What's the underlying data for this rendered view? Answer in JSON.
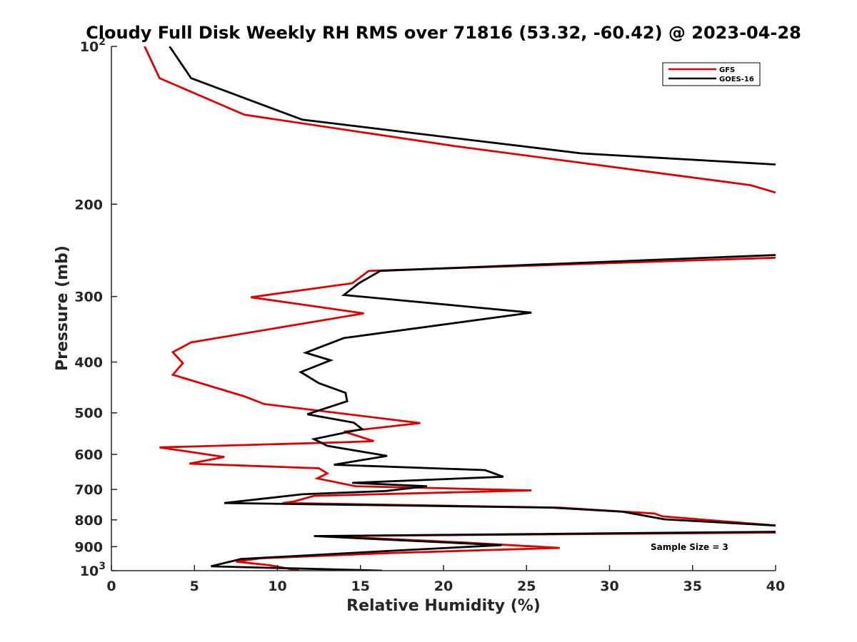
{
  "chart_data": {
    "type": "line",
    "title": "Cloudy Full Disk Weekly RH RMS over 71816 (53.32, -60.42) @ 2023-04-28",
    "xlabel": "Relative Humidity (%)",
    "ylabel": "Pressure (mb)",
    "xlim": [
      0,
      40
    ],
    "ylim": [
      100,
      1000
    ],
    "y_scale": "log",
    "y_reversed": true,
    "x_ticks": [
      0,
      5,
      10,
      15,
      20,
      25,
      30,
      35,
      40
    ],
    "x_tick_labels": [
      "0",
      "5",
      "10",
      "15",
      "20",
      "25",
      "30",
      "35",
      "40"
    ],
    "y_ticks": [
      100,
      200,
      300,
      400,
      500,
      600,
      700,
      800,
      900,
      1000
    ],
    "y_tick_labels": [
      {
        "base": "10",
        "exp": "2"
      },
      {
        "base": "200",
        "exp": ""
      },
      {
        "base": "300",
        "exp": ""
      },
      {
        "base": "400",
        "exp": ""
      },
      {
        "base": "500",
        "exp": ""
      },
      {
        "base": "600",
        "exp": ""
      },
      {
        "base": "700",
        "exp": ""
      },
      {
        "base": "800",
        "exp": ""
      },
      {
        "base": "900",
        "exp": ""
      },
      {
        "base": "10",
        "exp": "3"
      }
    ],
    "legend_position": "top-right",
    "annotation": "Sample Size = 3",
    "series": [
      {
        "name": "GFS",
        "color": "#dd0000",
        "points": [
          [
            2.0,
            100
          ],
          [
            2.9,
            115
          ],
          [
            8.0,
            135
          ],
          [
            20.7,
            155
          ],
          [
            38.5,
            184
          ],
          [
            40.0,
            190
          ],
          [
            null,
            null
          ],
          [
            40.0,
            253
          ],
          [
            15.5,
            268
          ],
          [
            14.5,
            283
          ],
          [
            8.4,
            301
          ],
          [
            15.2,
            323
          ],
          [
            4.8,
            367
          ],
          [
            3.7,
            383
          ],
          [
            4.3,
            402
          ],
          [
            3.7,
            423
          ],
          [
            8.0,
            465
          ],
          [
            9.2,
            481
          ],
          [
            18.6,
            523
          ],
          [
            14.0,
            543
          ],
          [
            15.8,
            566
          ],
          [
            14.0,
            569
          ],
          [
            2.9,
            582
          ],
          [
            6.8,
            607
          ],
          [
            4.7,
            625
          ],
          [
            12.5,
            638
          ],
          [
            13.0,
            652
          ],
          [
            12.4,
            667
          ],
          [
            14.7,
            690
          ],
          [
            25.3,
            703
          ],
          [
            12.2,
            720
          ],
          [
            11.0,
            738
          ],
          [
            10.3,
            743
          ],
          [
            27.0,
            758
          ],
          [
            32.7,
            778
          ],
          [
            33.2,
            788
          ],
          [
            40.0,
            820
          ],
          [
            null,
            null
          ],
          [
            40.0,
            846
          ],
          [
            13.0,
            859
          ],
          [
            21.0,
            883
          ],
          [
            27.0,
            905
          ],
          [
            17.0,
            925
          ],
          [
            9.0,
            947
          ],
          [
            7.5,
            961
          ],
          [
            9.5,
            976
          ],
          [
            11.3,
            1000
          ]
        ]
      },
      {
        "name": "GOES-16",
        "color": "#000000",
        "points": [
          [
            3.5,
            100
          ],
          [
            4.8,
            115
          ],
          [
            11.5,
            138
          ],
          [
            28.3,
            160
          ],
          [
            40.0,
            168
          ],
          [
            null,
            null
          ],
          [
            40.0,
            250
          ],
          [
            16.2,
            268
          ],
          [
            14.9,
            283
          ],
          [
            14.0,
            298
          ],
          [
            25.3,
            322
          ],
          [
            14.0,
            360
          ],
          [
            11.7,
            384
          ],
          [
            13.2,
            397
          ],
          [
            11.4,
            418
          ],
          [
            12.5,
            439
          ],
          [
            14.1,
            458
          ],
          [
            14.2,
            475
          ],
          [
            11.8,
            503
          ],
          [
            14.6,
            522
          ],
          [
            15.1,
            537
          ],
          [
            12.2,
            561
          ],
          [
            13.0,
            578
          ],
          [
            16.6,
            604
          ],
          [
            13.4,
            628
          ],
          [
            22.5,
            643
          ],
          [
            23.6,
            662
          ],
          [
            14.5,
            680
          ],
          [
            19.0,
            690
          ],
          [
            16.5,
            705
          ],
          [
            11.5,
            715
          ],
          [
            6.8,
            743
          ],
          [
            26.5,
            758
          ],
          [
            30.8,
            772
          ],
          [
            33.3,
            798
          ],
          [
            40.0,
            820
          ],
          [
            null,
            null
          ],
          [
            40.0,
            843
          ],
          [
            12.2,
            859
          ],
          [
            23.5,
            894
          ],
          [
            17.3,
            915
          ],
          [
            7.8,
            950
          ],
          [
            6.0,
            981
          ],
          [
            16.3,
            1000
          ]
        ]
      }
    ]
  }
}
